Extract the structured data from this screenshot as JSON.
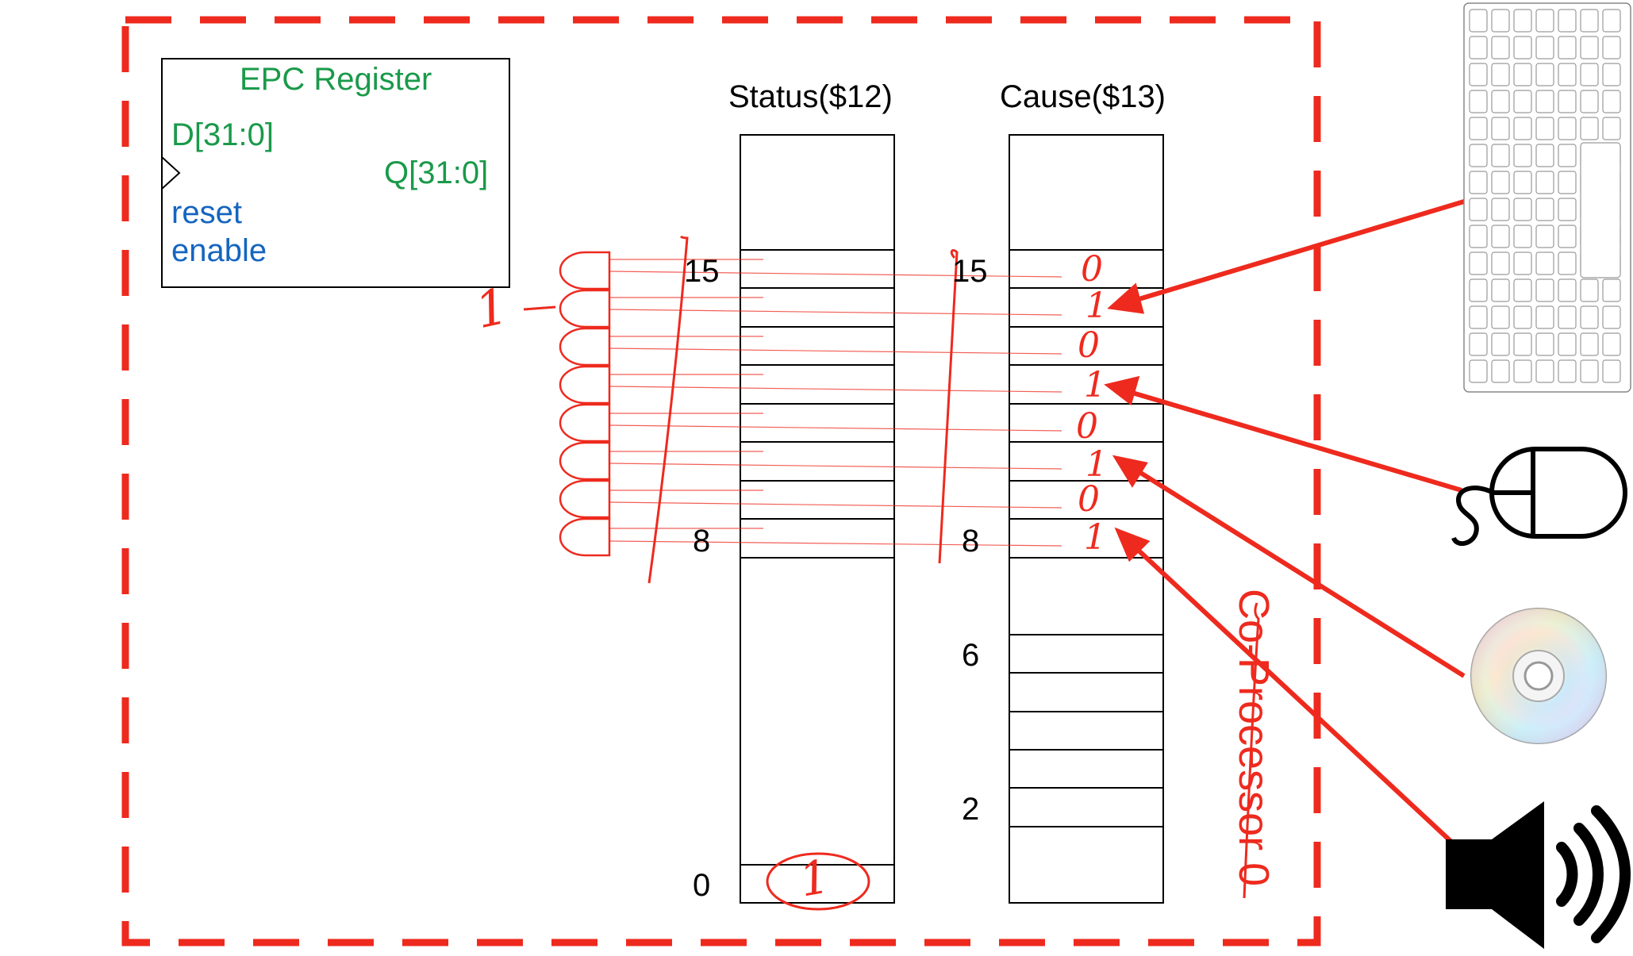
{
  "colors": {
    "accent_red": "#ee2a1e",
    "epc_green": "#1a9a4a",
    "signal_blue": "#1565c0",
    "ink": "#000000"
  },
  "epc": {
    "title": "EPC Register",
    "d": "D[31:0]",
    "q": "Q[31:0]",
    "reset": "reset",
    "enable": "enable"
  },
  "status": {
    "title": "Status($12)",
    "bit_15": "15",
    "bit_8": "8",
    "bit_0": "0"
  },
  "cause": {
    "title": "Cause($13)",
    "bit_15": "15",
    "bit_8": "8",
    "bit_6": "6",
    "bit_2": "2"
  },
  "annotations": {
    "and_output": "1",
    "status_bit0": "1",
    "cause_bits": [
      "0",
      "1",
      "0",
      "1",
      "0",
      "1",
      "0",
      "1"
    ],
    "coprocessor": "Co-Processor 0"
  },
  "devices": [
    "keyboard-icon",
    "mouse-icon",
    "disc-icon",
    "speaker-icon"
  ]
}
